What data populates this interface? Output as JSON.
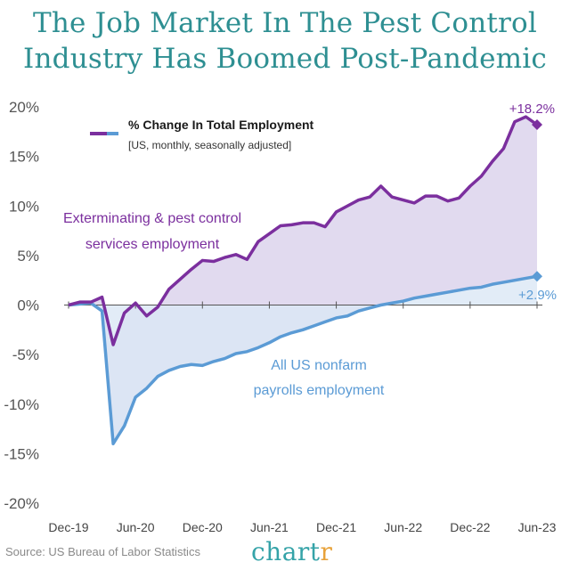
{
  "title_line1": "The Job Market In The Pest Control",
  "title_line2": "Industry Has Boomed Post-Pandemic",
  "source": "Source: US Bureau of Labor Statistics",
  "brand": {
    "main": "chart",
    "accent": "r"
  },
  "colors": {
    "pest": "#7b2f9e",
    "nonfarm": "#5b9bd5",
    "pest_fill": "#dcd4ec",
    "nonfarm_fill": "#dbe7f5",
    "title": "#2e8f92",
    "axis": "#555555"
  },
  "chart_data": {
    "type": "line",
    "legend": {
      "title": "% Change In Total Employment",
      "subtitle": "[US, monthly, seasonally adjusted]"
    },
    "ylim": [
      -20,
      20
    ],
    "y_ticks": [
      20,
      15,
      10,
      5,
      0,
      -5,
      -10,
      -15,
      -20
    ],
    "y_tick_labels": [
      "20%",
      "15%",
      "10%",
      "5%",
      "0%",
      "-5%",
      "-10%",
      "-15%",
      "-20%"
    ],
    "x_ticks": [
      "2019-12",
      "2020-06",
      "2020-12",
      "2021-06",
      "2021-12",
      "2022-06",
      "2022-12",
      "2023-06"
    ],
    "x_tick_labels": [
      "Dec-19",
      "Jun-20",
      "Dec-20",
      "Jun-21",
      "Dec-21",
      "Jun-22",
      "Dec-22",
      "Jun-23"
    ],
    "x": [
      "2019-12",
      "2020-01",
      "2020-02",
      "2020-03",
      "2020-04",
      "2020-05",
      "2020-06",
      "2020-07",
      "2020-08",
      "2020-09",
      "2020-10",
      "2020-11",
      "2020-12",
      "2021-01",
      "2021-02",
      "2021-03",
      "2021-04",
      "2021-05",
      "2021-06",
      "2021-07",
      "2021-08",
      "2021-09",
      "2021-10",
      "2021-11",
      "2021-12",
      "2022-01",
      "2022-02",
      "2022-03",
      "2022-04",
      "2022-05",
      "2022-06",
      "2022-07",
      "2022-08",
      "2022-09",
      "2022-10",
      "2022-11",
      "2022-12",
      "2023-01",
      "2023-02",
      "2023-03",
      "2023-04",
      "2023-05",
      "2023-06"
    ],
    "series": [
      {
        "name": "Exterminating & pest control services employment",
        "label_lines": [
          "Exterminating & pest control",
          "services employment"
        ],
        "end_label": "+18.2%",
        "values": [
          0.0,
          0.3,
          0.3,
          0.8,
          -4.0,
          -0.8,
          0.2,
          -1.1,
          -0.2,
          1.6,
          2.6,
          3.6,
          4.5,
          4.4,
          4.8,
          5.1,
          4.6,
          6.4,
          7.2,
          8.0,
          8.1,
          8.3,
          8.3,
          7.9,
          9.4,
          10.0,
          10.6,
          10.9,
          12.0,
          10.9,
          10.6,
          10.3,
          11.0,
          11.0,
          10.5,
          10.8,
          12.0,
          13.0,
          14.5,
          15.8,
          18.5,
          19.0,
          18.2
        ]
      },
      {
        "name": "All US nonfarm payrolls employment",
        "label_lines": [
          "All US nonfarm",
          "payrolls employment"
        ],
        "end_label": "+2.9%",
        "values": [
          0.0,
          0.1,
          0.2,
          -0.6,
          -14.0,
          -12.2,
          -9.3,
          -8.4,
          -7.2,
          -6.6,
          -6.2,
          -6.0,
          -6.1,
          -5.7,
          -5.4,
          -4.9,
          -4.7,
          -4.3,
          -3.8,
          -3.2,
          -2.8,
          -2.5,
          -2.1,
          -1.7,
          -1.3,
          -1.1,
          -0.6,
          -0.3,
          0.0,
          0.2,
          0.4,
          0.7,
          0.9,
          1.1,
          1.3,
          1.5,
          1.7,
          1.8,
          2.1,
          2.3,
          2.5,
          2.7,
          2.9
        ]
      }
    ]
  }
}
